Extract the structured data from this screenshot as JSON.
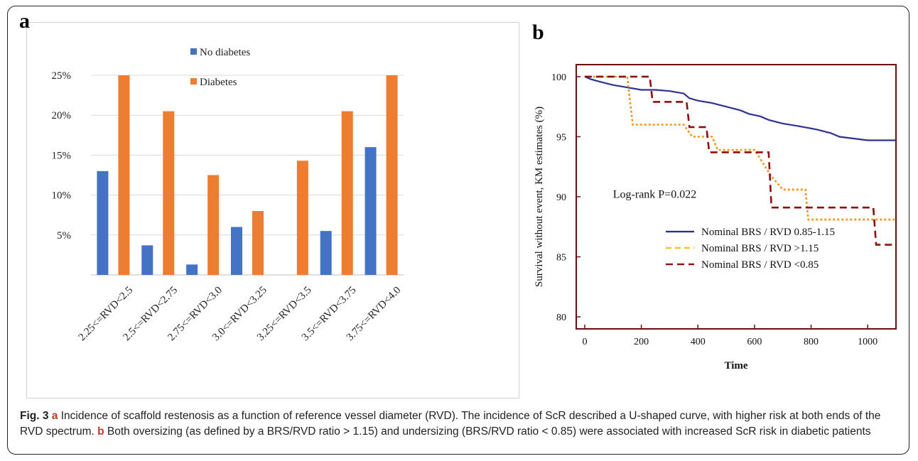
{
  "panel_a_label": "a",
  "panel_b_label": "b",
  "caption": {
    "fig_label": "Fig. 3",
    "a_label": "a",
    "a_text": "Incidence of scaffold restenosis as a function of reference vessel diameter (RVD). The incidence of ScR described a U-shaped curve, with higher risk at both ends of the RVD spectrum.",
    "b_label": "b",
    "b_text": "Both oversizing (as defined by a BRS/RVD ratio > 1.15) and undersizing (BRS/RVD ratio < 0.85) were associated with increased ScR risk in diabetic patients"
  },
  "chart_data": [
    {
      "type": "bar",
      "categories": [
        "2.25<=RVD<2.5",
        "2.5<=RVD<2.75",
        "2.75<=RVD<3.0",
        "3.0<=RVD<3.25",
        "3.25<=RVD<3.5",
        "3.5<=RVD<3.75",
        "3.75<=RVD<4.0"
      ],
      "series": [
        {
          "name": "No diabetes",
          "color": "#4472C4",
          "values": [
            13,
            3.7,
            1.3,
            6,
            0,
            5.5,
            16
          ]
        },
        {
          "name": "Diabetes",
          "color": "#ED7D31",
          "values": [
            25,
            20.5,
            12.5,
            8,
            14.3,
            20.5,
            25
          ]
        }
      ],
      "ylim": [
        0,
        25
      ],
      "yticks": [
        5,
        10,
        15,
        20,
        25
      ],
      "ytick_labels": [
        "5%",
        "10%",
        "15%",
        "20%",
        "25%"
      ],
      "grid": true,
      "legend": "top-center"
    },
    {
      "type": "line",
      "xlabel": "Time",
      "ylabel": "Survival without event, KM estimates (%)",
      "xlim": [
        -30,
        1100
      ],
      "ylim": [
        79,
        101
      ],
      "xticks": [
        0,
        200,
        400,
        600,
        800,
        1000
      ],
      "yticks": [
        80,
        85,
        90,
        95,
        100
      ],
      "annotation": "Log-rank P=0.022",
      "legend": "bottom-right",
      "series": [
        {
          "name": "Nominal BRS / RVD 0.85-1.15",
          "color": "#2E3192",
          "style": "solid",
          "x": [
            0,
            20,
            50,
            100,
            150,
            200,
            250,
            300,
            350,
            370,
            400,
            450,
            500,
            550,
            580,
            620,
            650,
            700,
            750,
            820,
            870,
            900,
            1000,
            1100
          ],
          "y": [
            100,
            99.8,
            99.6,
            99.3,
            99.1,
            98.9,
            98.9,
            98.8,
            98.6,
            98.2,
            98.0,
            97.8,
            97.5,
            97.2,
            96.9,
            96.7,
            96.4,
            96.1,
            95.9,
            95.6,
            95.3,
            95.0,
            94.7,
            94.7
          ]
        },
        {
          "name": "Nominal BRS / RVD >1.15",
          "color": "#F7941D",
          "style": "dotted",
          "x": [
            0,
            150,
            170,
            350,
            380,
            450,
            470,
            600,
            630,
            660,
            700,
            780,
            790,
            1100
          ],
          "y": [
            100,
            100,
            96,
            96,
            95,
            95,
            93.9,
            93.9,
            92.8,
            91.7,
            90.6,
            90.6,
            88.1,
            88.1
          ]
        },
        {
          "name": "Nominal BRS / RVD <0.85",
          "color": "#8B0F0F",
          "style": "dashed",
          "x": [
            0,
            230,
            240,
            360,
            370,
            430,
            440,
            650,
            660,
            1020,
            1030,
            1100
          ],
          "y": [
            100,
            100,
            97.9,
            97.9,
            95.8,
            95.8,
            93.7,
            93.7,
            89.1,
            89.1,
            86,
            86
          ]
        }
      ]
    }
  ]
}
